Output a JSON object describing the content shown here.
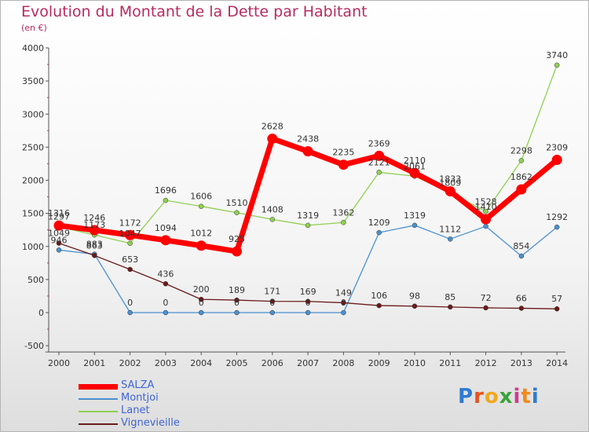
{
  "header": {
    "title": "Evolution du Montant de la Dette par Habitant",
    "subtitle": "(en €)"
  },
  "logo": {
    "letters": [
      "P",
      "r",
      "o",
      "x",
      "i",
      "t",
      "i"
    ],
    "colors": [
      "#2f7bd0",
      "#e8521e",
      "#f0a81c",
      "#3aa43a",
      "#d23a8f",
      "#f08a1c",
      "#2f7bd0"
    ]
  },
  "chart_data": {
    "type": "line",
    "title": "Evolution du Montant de la Dette par Habitant",
    "subtitle": "(en €)",
    "x": [
      "2000",
      "2001",
      "2002",
      "2003",
      "2004",
      "2005",
      "2006",
      "2007",
      "2008",
      "2009",
      "2010",
      "2011",
      "2012",
      "2013",
      "2014"
    ],
    "ylim": [
      -500,
      4000
    ],
    "yticks": [
      "-500",
      "0",
      "500",
      "1000",
      "1500",
      "2000",
      "2500",
      "3000",
      "3500",
      "4000"
    ],
    "grid": false,
    "legend_position": "bottom-left",
    "series": [
      {
        "name": "SALZA",
        "color": "#ff0000",
        "values": [
          1316,
          1246,
          1172,
          1094,
          1012,
          925,
          2628,
          2438,
          2235,
          2369,
          2110,
          1833,
          1410,
          1862,
          2309
        ],
        "labels": [
          "1316",
          "1246",
          "1172",
          "1094",
          "1012",
          "925",
          "2628",
          "2438",
          "2235",
          "2369",
          "2110",
          "1833",
          "1410",
          "1862",
          "2309"
        ]
      },
      {
        "name": "Montjoi",
        "color": "#4a90d0",
        "values": [
          946,
          883,
          0,
          0,
          0,
          0,
          0,
          0,
          0,
          1209,
          1319,
          1112,
          1305,
          854,
          1292
        ],
        "labels": [
          "946",
          "883",
          "0",
          "0",
          "0",
          "0",
          "0",
          "0",
          "0",
          "1209",
          "1319",
          "1112",
          "",
          "854",
          "1292"
        ]
      },
      {
        "name": "Lanet",
        "color": "#8fd050",
        "values": [
          1297,
          1173,
          1047,
          1696,
          1606,
          1510,
          1408,
          1319,
          1362,
          2121,
          2061,
          1809,
          1528,
          2298,
          3740
        ],
        "labels": [
          "1297",
          "1173",
          "1047",
          "1696",
          "1606",
          "1510",
          "1408",
          "1319",
          "1362",
          "2121",
          "2061",
          "1809",
          "1528",
          "2298",
          "3740"
        ]
      },
      {
        "name": "Vignevieille",
        "color": "#6b1a1a",
        "values": [
          1049,
          863,
          653,
          436,
          200,
          189,
          171,
          169,
          149,
          106,
          98,
          85,
          72,
          66,
          57
        ],
        "labels": [
          "1049",
          "863",
          "653",
          "436",
          "200",
          "189",
          "171",
          "169",
          "149",
          "106",
          "98",
          "85",
          "72",
          "66",
          "57"
        ]
      }
    ]
  }
}
